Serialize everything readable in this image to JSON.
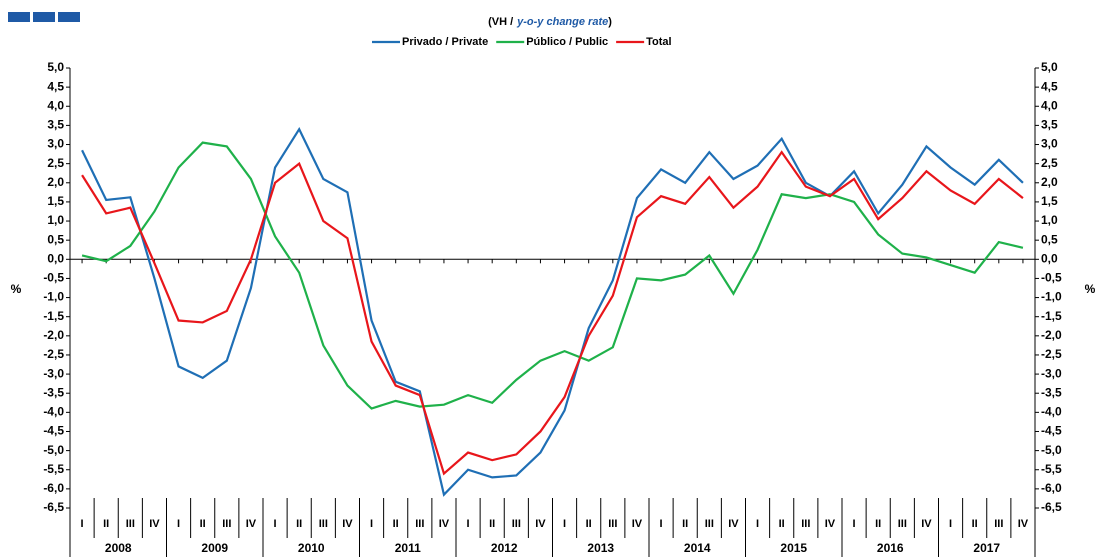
{
  "chart_data": {
    "type": "line",
    "subtitle": {
      "prefix": "(VH /",
      "emphasis": "y-o-y change rate",
      "suffix": ")"
    },
    "y_label": "%",
    "y2_label": "%",
    "categories": [
      "I",
      "II",
      "III",
      "IV",
      "I",
      "II",
      "III",
      "IV",
      "I",
      "II",
      "III",
      "IV",
      "I",
      "II",
      "III",
      "IV",
      "I",
      "II",
      "III",
      "IV",
      "I",
      "II",
      "III",
      "IV",
      "I",
      "II",
      "III",
      "IV",
      "I",
      "II",
      "III",
      "IV",
      "I",
      "II",
      "III",
      "IV",
      "I",
      "II",
      "III",
      "IV"
    ],
    "years": [
      "2008",
      "2009",
      "2010",
      "2011",
      "2012",
      "2013",
      "2014",
      "2015",
      "2016",
      "2017"
    ],
    "series": [
      {
        "name": "Privado / Private",
        "color": "#1f6fb5",
        "values": [
          2.85,
          1.55,
          1.62,
          -0.5,
          -2.8,
          -3.1,
          -2.65,
          -0.75,
          2.4,
          3.4,
          2.1,
          1.75,
          -1.6,
          -3.2,
          -3.45,
          -6.15,
          -5.5,
          -5.7,
          -5.65,
          -5.05,
          -3.95,
          -1.8,
          -0.55,
          1.6,
          2.35,
          2.0,
          2.8,
          2.1,
          2.45,
          3.15,
          2.0,
          1.65,
          2.3,
          1.2,
          1.95,
          2.95,
          2.4,
          1.95,
          2.6,
          2.0
        ]
      },
      {
        "name": "Público / Public",
        "color": "#1fb14a",
        "values": [
          0.1,
          -0.05,
          0.35,
          1.25,
          2.4,
          3.05,
          2.95,
          2.1,
          0.6,
          -0.35,
          -2.25,
          -3.3,
          -3.9,
          -3.7,
          -3.85,
          -3.8,
          -3.55,
          -3.75,
          -3.15,
          -2.65,
          -2.4,
          -2.65,
          -2.3,
          -0.5,
          -0.55,
          -0.4,
          0.1,
          -0.9,
          0.25,
          1.7,
          1.6,
          1.7,
          1.5,
          0.65,
          0.15,
          0.05,
          -0.15,
          -0.35,
          0.45,
          0.3
        ]
      },
      {
        "name": "Total",
        "color": "#e8161b",
        "values": [
          2.2,
          1.2,
          1.35,
          -0.1,
          -1.6,
          -1.65,
          -1.35,
          0.0,
          2.0,
          2.5,
          1.0,
          0.55,
          -2.15,
          -3.3,
          -3.55,
          -5.6,
          -5.05,
          -5.25,
          -5.1,
          -4.5,
          -3.6,
          -2.0,
          -0.95,
          1.1,
          1.65,
          1.45,
          2.15,
          1.35,
          1.9,
          2.8,
          1.9,
          1.65,
          2.1,
          1.05,
          1.6,
          2.3,
          1.8,
          1.45,
          2.1,
          1.6
        ]
      }
    ],
    "ylim": [
      -6.5,
      5.0
    ],
    "yticks": [
      {
        "value": 5.0,
        "label": "5,0"
      },
      {
        "value": 4.5,
        "label": "4,5"
      },
      {
        "value": 4.0,
        "label": "4,0"
      },
      {
        "value": 3.5,
        "label": "3,5"
      },
      {
        "value": 3.0,
        "label": "3,0"
      },
      {
        "value": 2.5,
        "label": "2,5"
      },
      {
        "value": 2.0,
        "label": "2,0"
      },
      {
        "value": 1.5,
        "label": "1,5"
      },
      {
        "value": 1.0,
        "label": "1,0"
      },
      {
        "value": 0.5,
        "label": "0,5"
      },
      {
        "value": 0,
        "label": "0,0"
      },
      {
        "value": -0.5,
        "label": "-0,5"
      },
      {
        "value": -1.0,
        "label": "-1,0"
      },
      {
        "value": -1.5,
        "label": "-1,5"
      },
      {
        "value": -2.0,
        "label": "-2,0"
      },
      {
        "value": -2.5,
        "label": "-2,5"
      },
      {
        "value": -3.0,
        "label": "-3,0"
      },
      {
        "value": -3.5,
        "label": "-3,5"
      },
      {
        "value": -4.0,
        "label": "-4,0"
      },
      {
        "value": -4.5,
        "label": "-4,5"
      },
      {
        "value": -5.0,
        "label": "-5,0"
      },
      {
        "value": -5.5,
        "label": "-5,5"
      },
      {
        "value": -6.0,
        "label": "-6,0"
      },
      {
        "value": -6.5,
        "label": "-6,5"
      }
    ],
    "y2lim": [
      -6.5,
      5.0
    ],
    "y2ticks": [
      {
        "value": 5.0,
        "label": "5,0"
      },
      {
        "value": 4.5,
        "label": "4,5"
      },
      {
        "value": 4.0,
        "label": "4,0"
      },
      {
        "value": 3.5,
        "label": "3,5"
      },
      {
        "value": 3.0,
        "label": "3,0"
      },
      {
        "value": 2.5,
        "label": "2,5"
      },
      {
        "value": 2.0,
        "label": "2,0"
      },
      {
        "value": 1.5,
        "label": "1,5"
      },
      {
        "value": 1.0,
        "label": "1,0"
      },
      {
        "value": 0.5,
        "label": "0,5"
      },
      {
        "value": 0,
        "label": "0,0"
      },
      {
        "value": -0.5,
        "label": "-0,5"
      },
      {
        "value": -1.0,
        "label": "-1,0"
      },
      {
        "value": -1.5,
        "label": "-1,5"
      },
      {
        "value": -2.0,
        "label": "-2,0"
      },
      {
        "value": -2.5,
        "label": "-2,5"
      },
      {
        "value": -3.0,
        "label": "-3,0"
      },
      {
        "value": -3.5,
        "label": "-3,5"
      },
      {
        "value": -4.0,
        "label": "-4,0"
      },
      {
        "value": -4.5,
        "label": "-4,5"
      },
      {
        "value": -5.0,
        "label": "-5,0"
      },
      {
        "value": -5.5,
        "label": "-5,5"
      },
      {
        "value": -6.0,
        "label": "-6,0"
      },
      {
        "value": -6.5,
        "label": "-6,5"
      }
    ],
    "grid": false,
    "legend": "top"
  }
}
